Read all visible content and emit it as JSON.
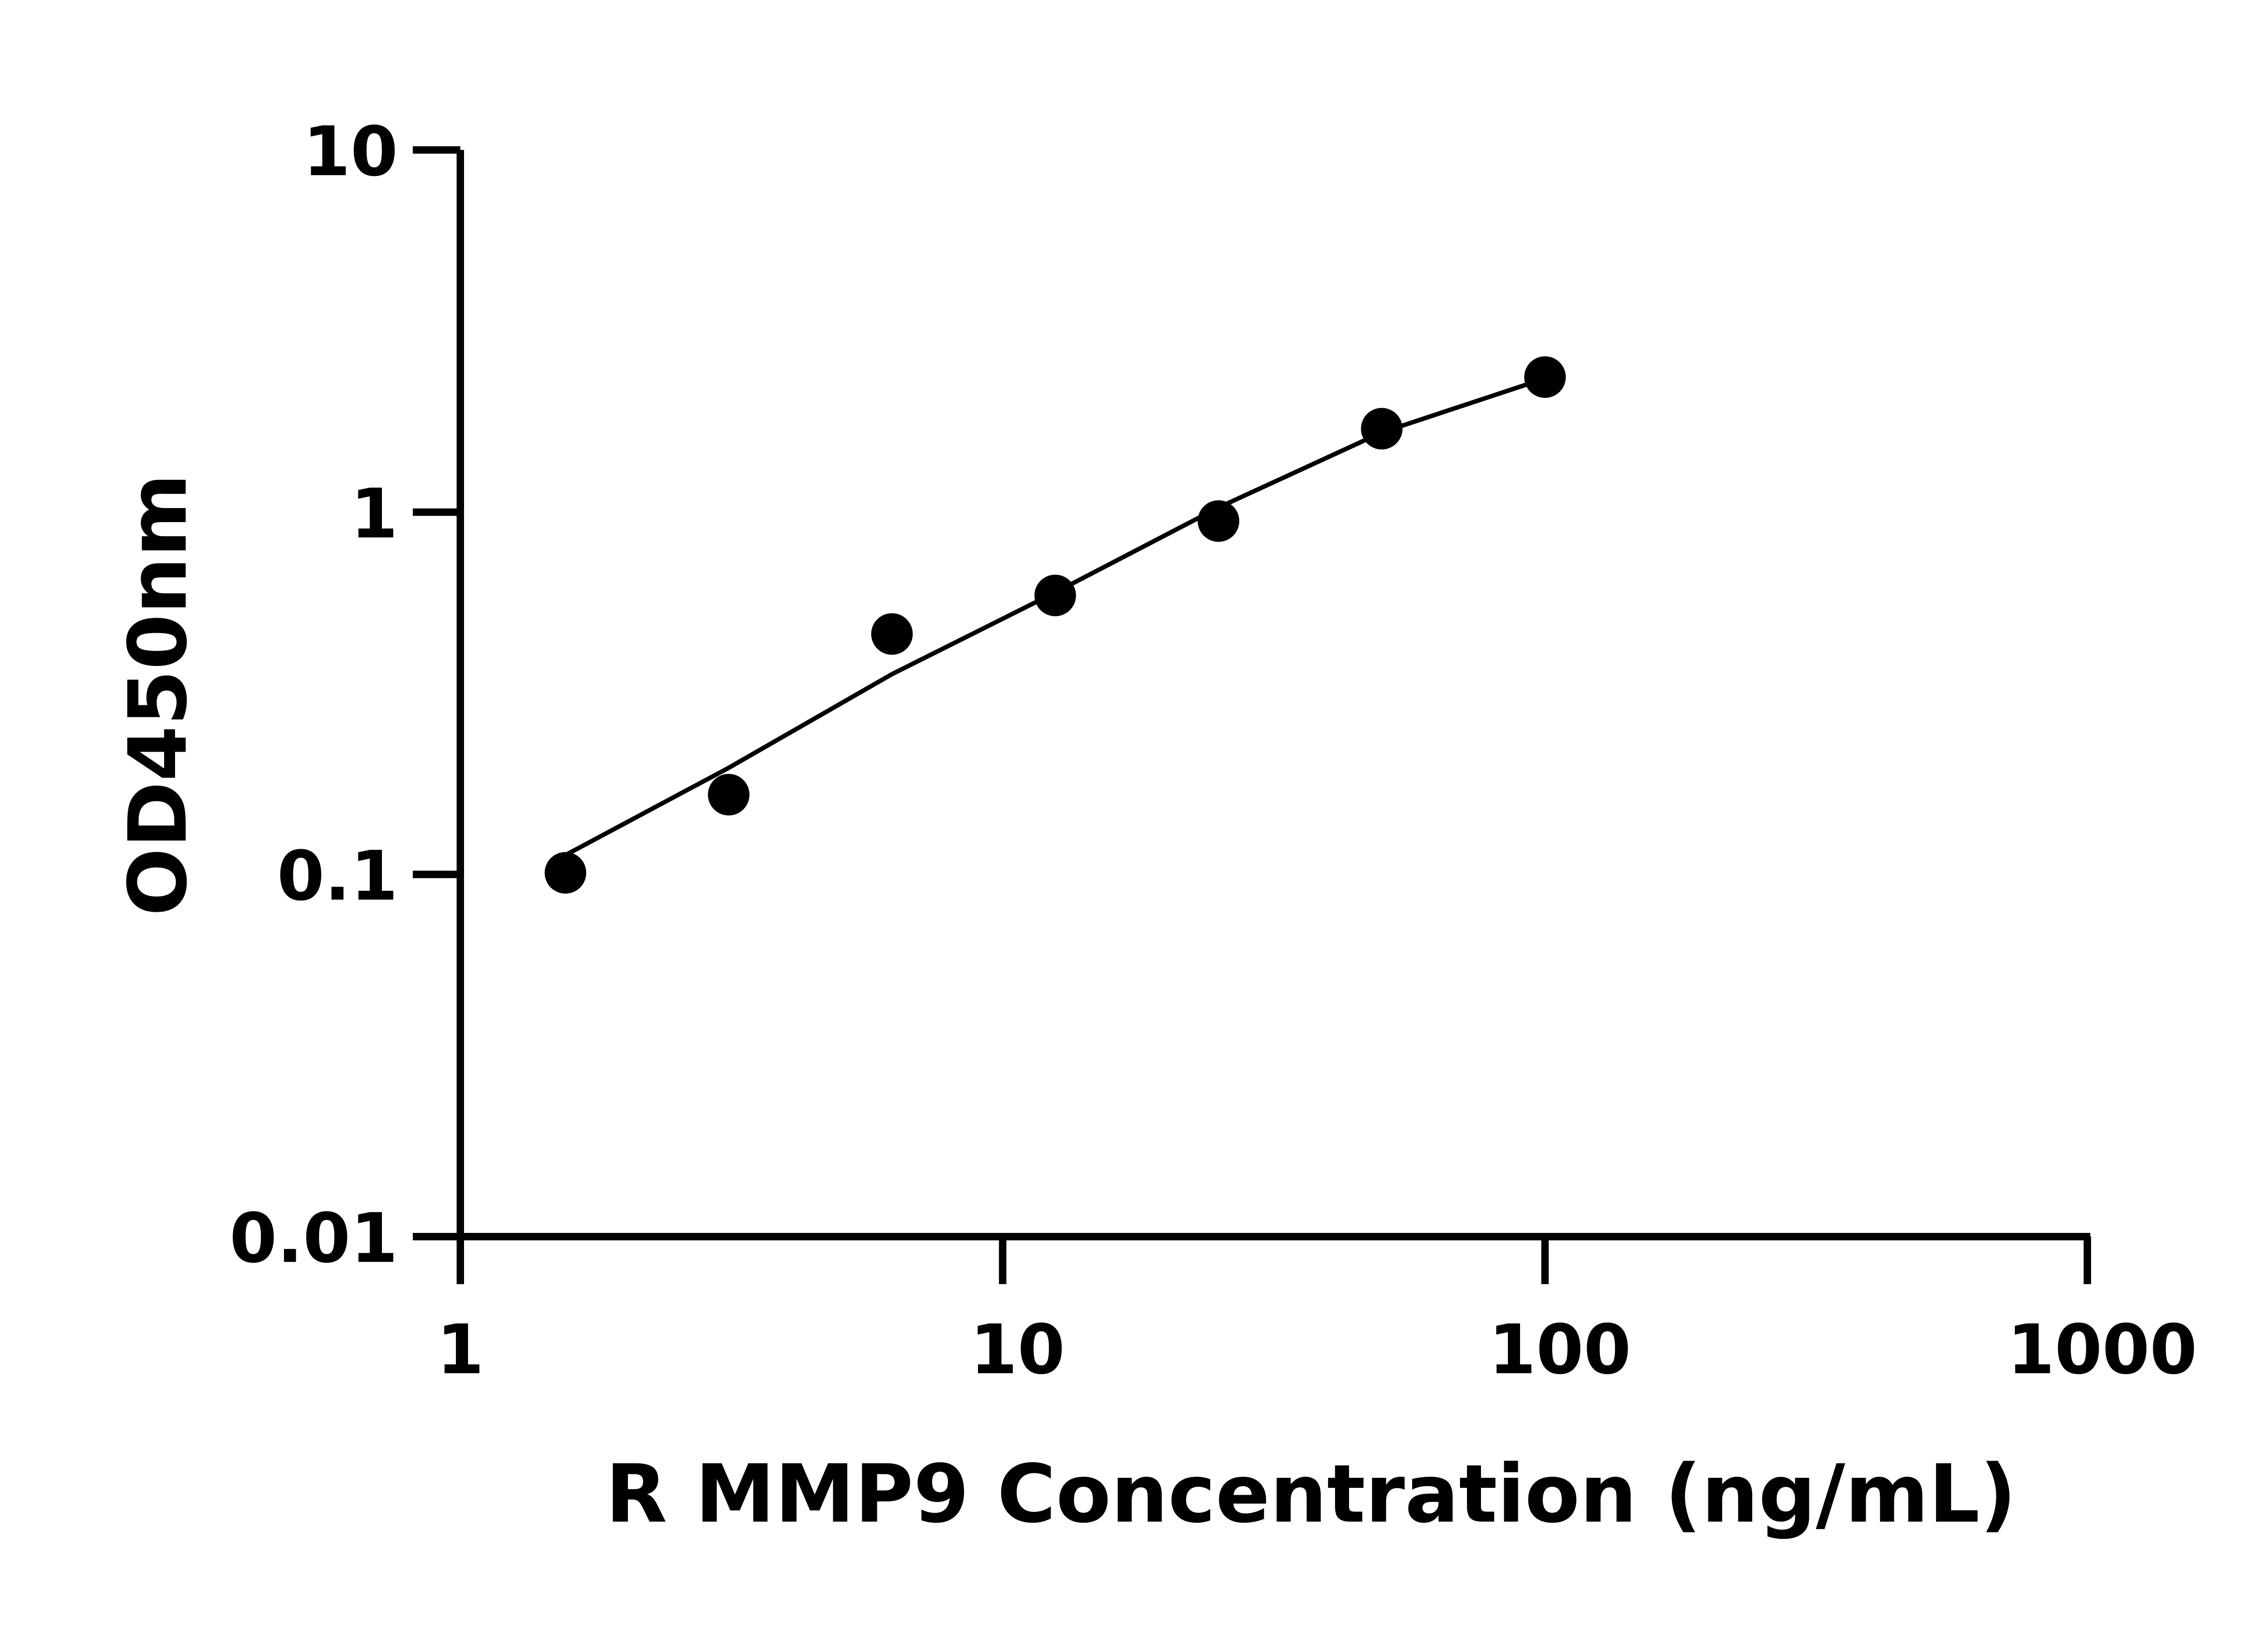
{
  "chart_data": {
    "type": "scatter",
    "title": "",
    "xlabel": "R MMP9 Concentration (ng/mL)",
    "ylabel": "OD450nm",
    "x_scale": "log",
    "y_scale": "log",
    "xlim": [
      1,
      1000
    ],
    "ylim": [
      0.01,
      10
    ],
    "x_ticks": [
      1,
      10,
      100,
      1000
    ],
    "x_tick_labels": [
      "1",
      "10",
      "100",
      "1000"
    ],
    "y_ticks": [
      0.01,
      0.1,
      1,
      10
    ],
    "y_tick_labels": [
      "0.01",
      "0.1",
      "1",
      "10"
    ],
    "grid": false,
    "legend": "none",
    "colors": {
      "points": "#000000",
      "curve": "#000000",
      "axes": "#000000"
    },
    "points": {
      "x": [
        1.5625,
        3.125,
        6.25,
        12.5,
        25,
        50,
        100
      ],
      "y": [
        0.101,
        0.166,
        0.461,
        0.589,
        0.945,
        1.7,
        2.36
      ]
    },
    "fit_curve": {
      "x": [
        1.5625,
        3.125,
        6.25,
        12.5,
        25,
        50,
        100
      ],
      "y": [
        0.113,
        0.197,
        0.357,
        0.6,
        1.03,
        1.66,
        2.34
      ]
    }
  }
}
